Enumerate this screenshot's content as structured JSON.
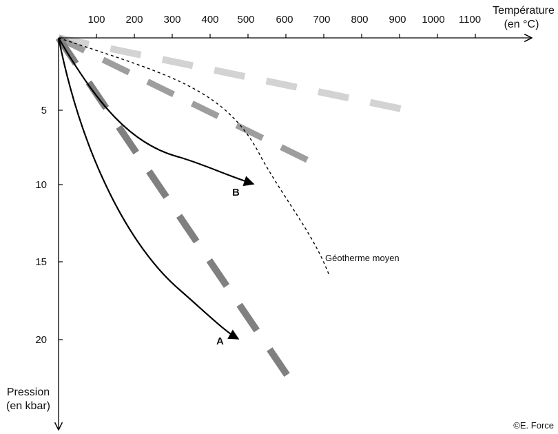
{
  "x_axis": {
    "title_line1": "Température",
    "title_line2": "(en °C)",
    "ticks": [
      "100",
      "200",
      "300",
      "400",
      "500",
      "600",
      "700",
      "800",
      "900",
      "1000",
      "1100"
    ]
  },
  "y_axis": {
    "title_line1": "Pression",
    "title_line2": "(en kbar)",
    "ticks": [
      "5",
      "10",
      "15",
      "20"
    ]
  },
  "labels": {
    "curve_a": "A",
    "curve_b": "B",
    "geotherm": "Géotherme moyen"
  },
  "credit": "©E. Force",
  "colors": {
    "axis": "#000000",
    "curve": "#000000",
    "dash_light": "#d3d3d3",
    "dash_mid": "#9a9a9a",
    "dash_dark": "#808080"
  }
}
